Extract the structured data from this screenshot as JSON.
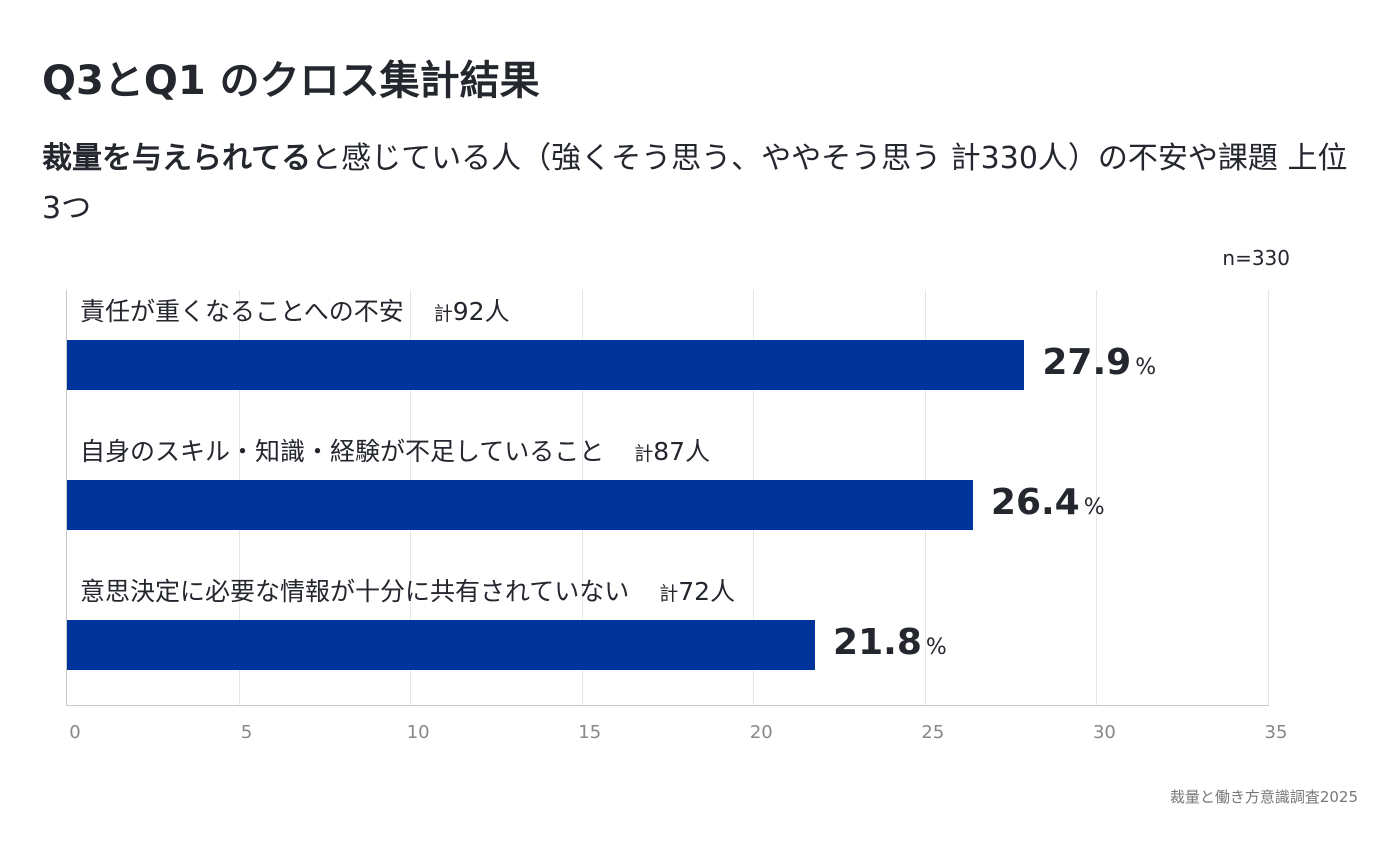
{
  "title": "Q3とQ1 のクロス集計結果",
  "subtitle_bold": "裁量を与えられてる",
  "subtitle_rest": "と感じている人（強くそう思う、ややそう思う 計330人）の不安や課題 上位3つ",
  "n_label": "n=330",
  "source": "裁量と働き方意識調査2025",
  "chart_data": {
    "type": "bar",
    "orientation": "horizontal",
    "categories": [
      "責任が重くなることへの不安",
      "自身のスキル・知識・経験が不足していること",
      "意思決定に必要な情報が十分に共有されていない"
    ],
    "counts_prefix": "計",
    "counts": [
      "92人",
      "87人",
      "72人"
    ],
    "values": [
      27.9,
      26.4,
      21.8
    ],
    "value_unit": "%",
    "xlim": [
      0,
      35
    ],
    "xticks": [
      "0",
      "5",
      "10",
      "15",
      "20",
      "25",
      "30",
      "35"
    ],
    "grid": true,
    "bar_color": "#00349b"
  }
}
